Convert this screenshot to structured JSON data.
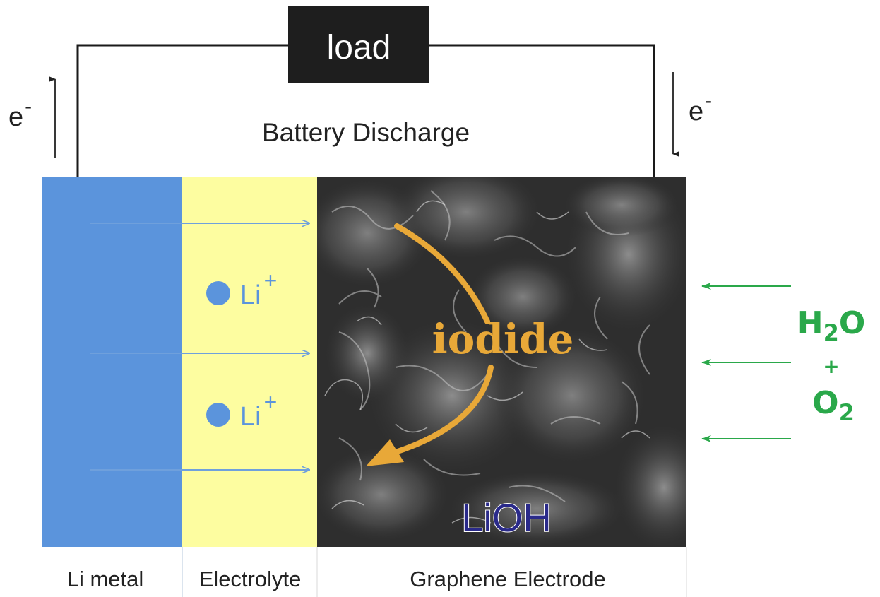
{
  "load": {
    "label": "load"
  },
  "circuit": {
    "label": "Battery Discharge",
    "electron_left": {
      "base": "e",
      "sup": "-"
    },
    "electron_right": {
      "base": "e",
      "sup": "-"
    }
  },
  "ions": [
    {
      "base": "Li",
      "sup": "+"
    },
    {
      "base": "Li",
      "sup": "+"
    }
  ],
  "mediator": {
    "label": "iodide"
  },
  "product": {
    "label": "LiOH"
  },
  "reactants": {
    "water_base": "H",
    "water_sub": "2",
    "water_tail": "O",
    "plus": "+",
    "oxygen_base": "O",
    "oxygen_sub": "2"
  },
  "regions": {
    "li_metal": "Li metal",
    "electrolyte": "Electrolyte",
    "graphene": "Graphene Electrode"
  },
  "colors": {
    "li_metal": "#5b94dc",
    "electrolyte": "#fdfda0",
    "ion_arrow": "#6fa0dc",
    "ion_dot": "#5b94dc",
    "reactant_green": "#2aa84a",
    "mediator_orange": "#e8a838",
    "product_text": "#2a2a8a",
    "load_box": "#1e1e1e"
  }
}
